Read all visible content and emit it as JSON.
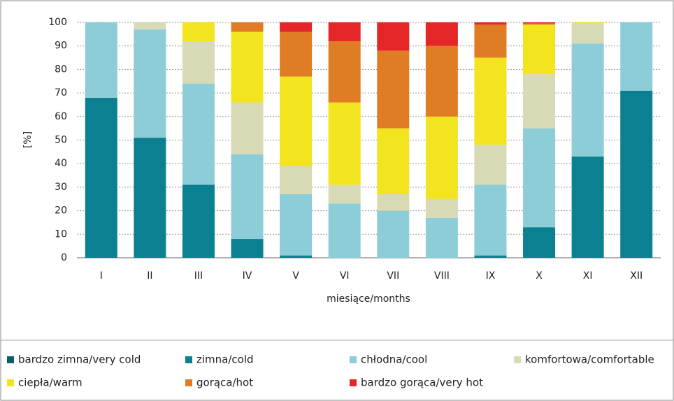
{
  "chart_data": {
    "type": "stacked_bar",
    "y_label": "[%]",
    "x_label": "miesiące/months",
    "categories": [
      "I",
      "II",
      "III",
      "IV",
      "V",
      "VI",
      "VII",
      "VIII",
      "IX",
      "X",
      "XI",
      "XII"
    ],
    "series": [
      {
        "name": "bardzo zimna/very cold",
        "color": "#0b5d66",
        "values": [
          0,
          0,
          0,
          0,
          0,
          0,
          0,
          0,
          0,
          0,
          0,
          0
        ]
      },
      {
        "name": "zimna/cold",
        "color": "#0a8090",
        "values": [
          68,
          51,
          31,
          8,
          1,
          0,
          0,
          0,
          1,
          13,
          43,
          71
        ]
      },
      {
        "name": "chłodna/cool",
        "color": "#8ccdd8",
        "values": [
          32,
          46,
          43,
          36,
          26,
          23,
          20,
          17,
          30,
          42,
          48,
          29
        ]
      },
      {
        "name": "komfortowa/comfortable",
        "color": "#d8dab6",
        "values": [
          0,
          3,
          18,
          22,
          12,
          8,
          7,
          8,
          17,
          23,
          8.5,
          0
        ]
      },
      {
        "name": "ciepła/warm",
        "color": "#f2e41e",
        "values": [
          0,
          0,
          8,
          30,
          38,
          35,
          28,
          35,
          37,
          21,
          0.5,
          0
        ]
      },
      {
        "name": "gorąca/hot",
        "color": "#e07d24",
        "values": [
          0,
          0,
          0,
          4,
          19,
          26,
          33,
          30,
          14,
          0.5,
          0,
          0
        ]
      },
      {
        "name": "bardzo gorąca/very hot",
        "color": "#e52629",
        "values": [
          0,
          0,
          0,
          0,
          4,
          8,
          12,
          10,
          1,
          0.5,
          0,
          0
        ]
      }
    ],
    "ylim": [
      0,
      100
    ],
    "yticks": [
      0,
      10,
      20,
      30,
      40,
      50,
      60,
      70,
      80,
      90,
      100
    ],
    "grid": true
  }
}
